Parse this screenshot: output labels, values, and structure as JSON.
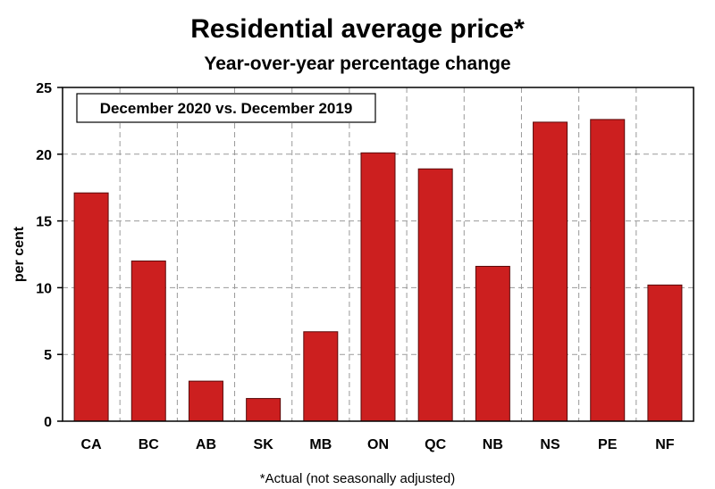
{
  "chart_data": {
    "type": "bar",
    "title": "Residential average price*",
    "subtitle": "Year-over-year percentage change",
    "ylabel": "per cent",
    "xlabel": "",
    "legend_box": "December 2020 vs. December 2019",
    "legend_position": "top-left",
    "footnote": "*Actual (not seasonally adjusted)",
    "categories": [
      "CA",
      "BC",
      "AB",
      "SK",
      "MB",
      "ON",
      "QC",
      "NB",
      "NS",
      "PE",
      "NF"
    ],
    "values": [
      17.1,
      12.0,
      3.0,
      1.7,
      6.7,
      20.1,
      18.9,
      11.6,
      22.4,
      22.6,
      10.2
    ],
    "ylim": [
      0,
      25
    ],
    "yticks": [
      0,
      5,
      10,
      15,
      20,
      25
    ],
    "grid": true,
    "bar_color": "#cc1f1f"
  }
}
